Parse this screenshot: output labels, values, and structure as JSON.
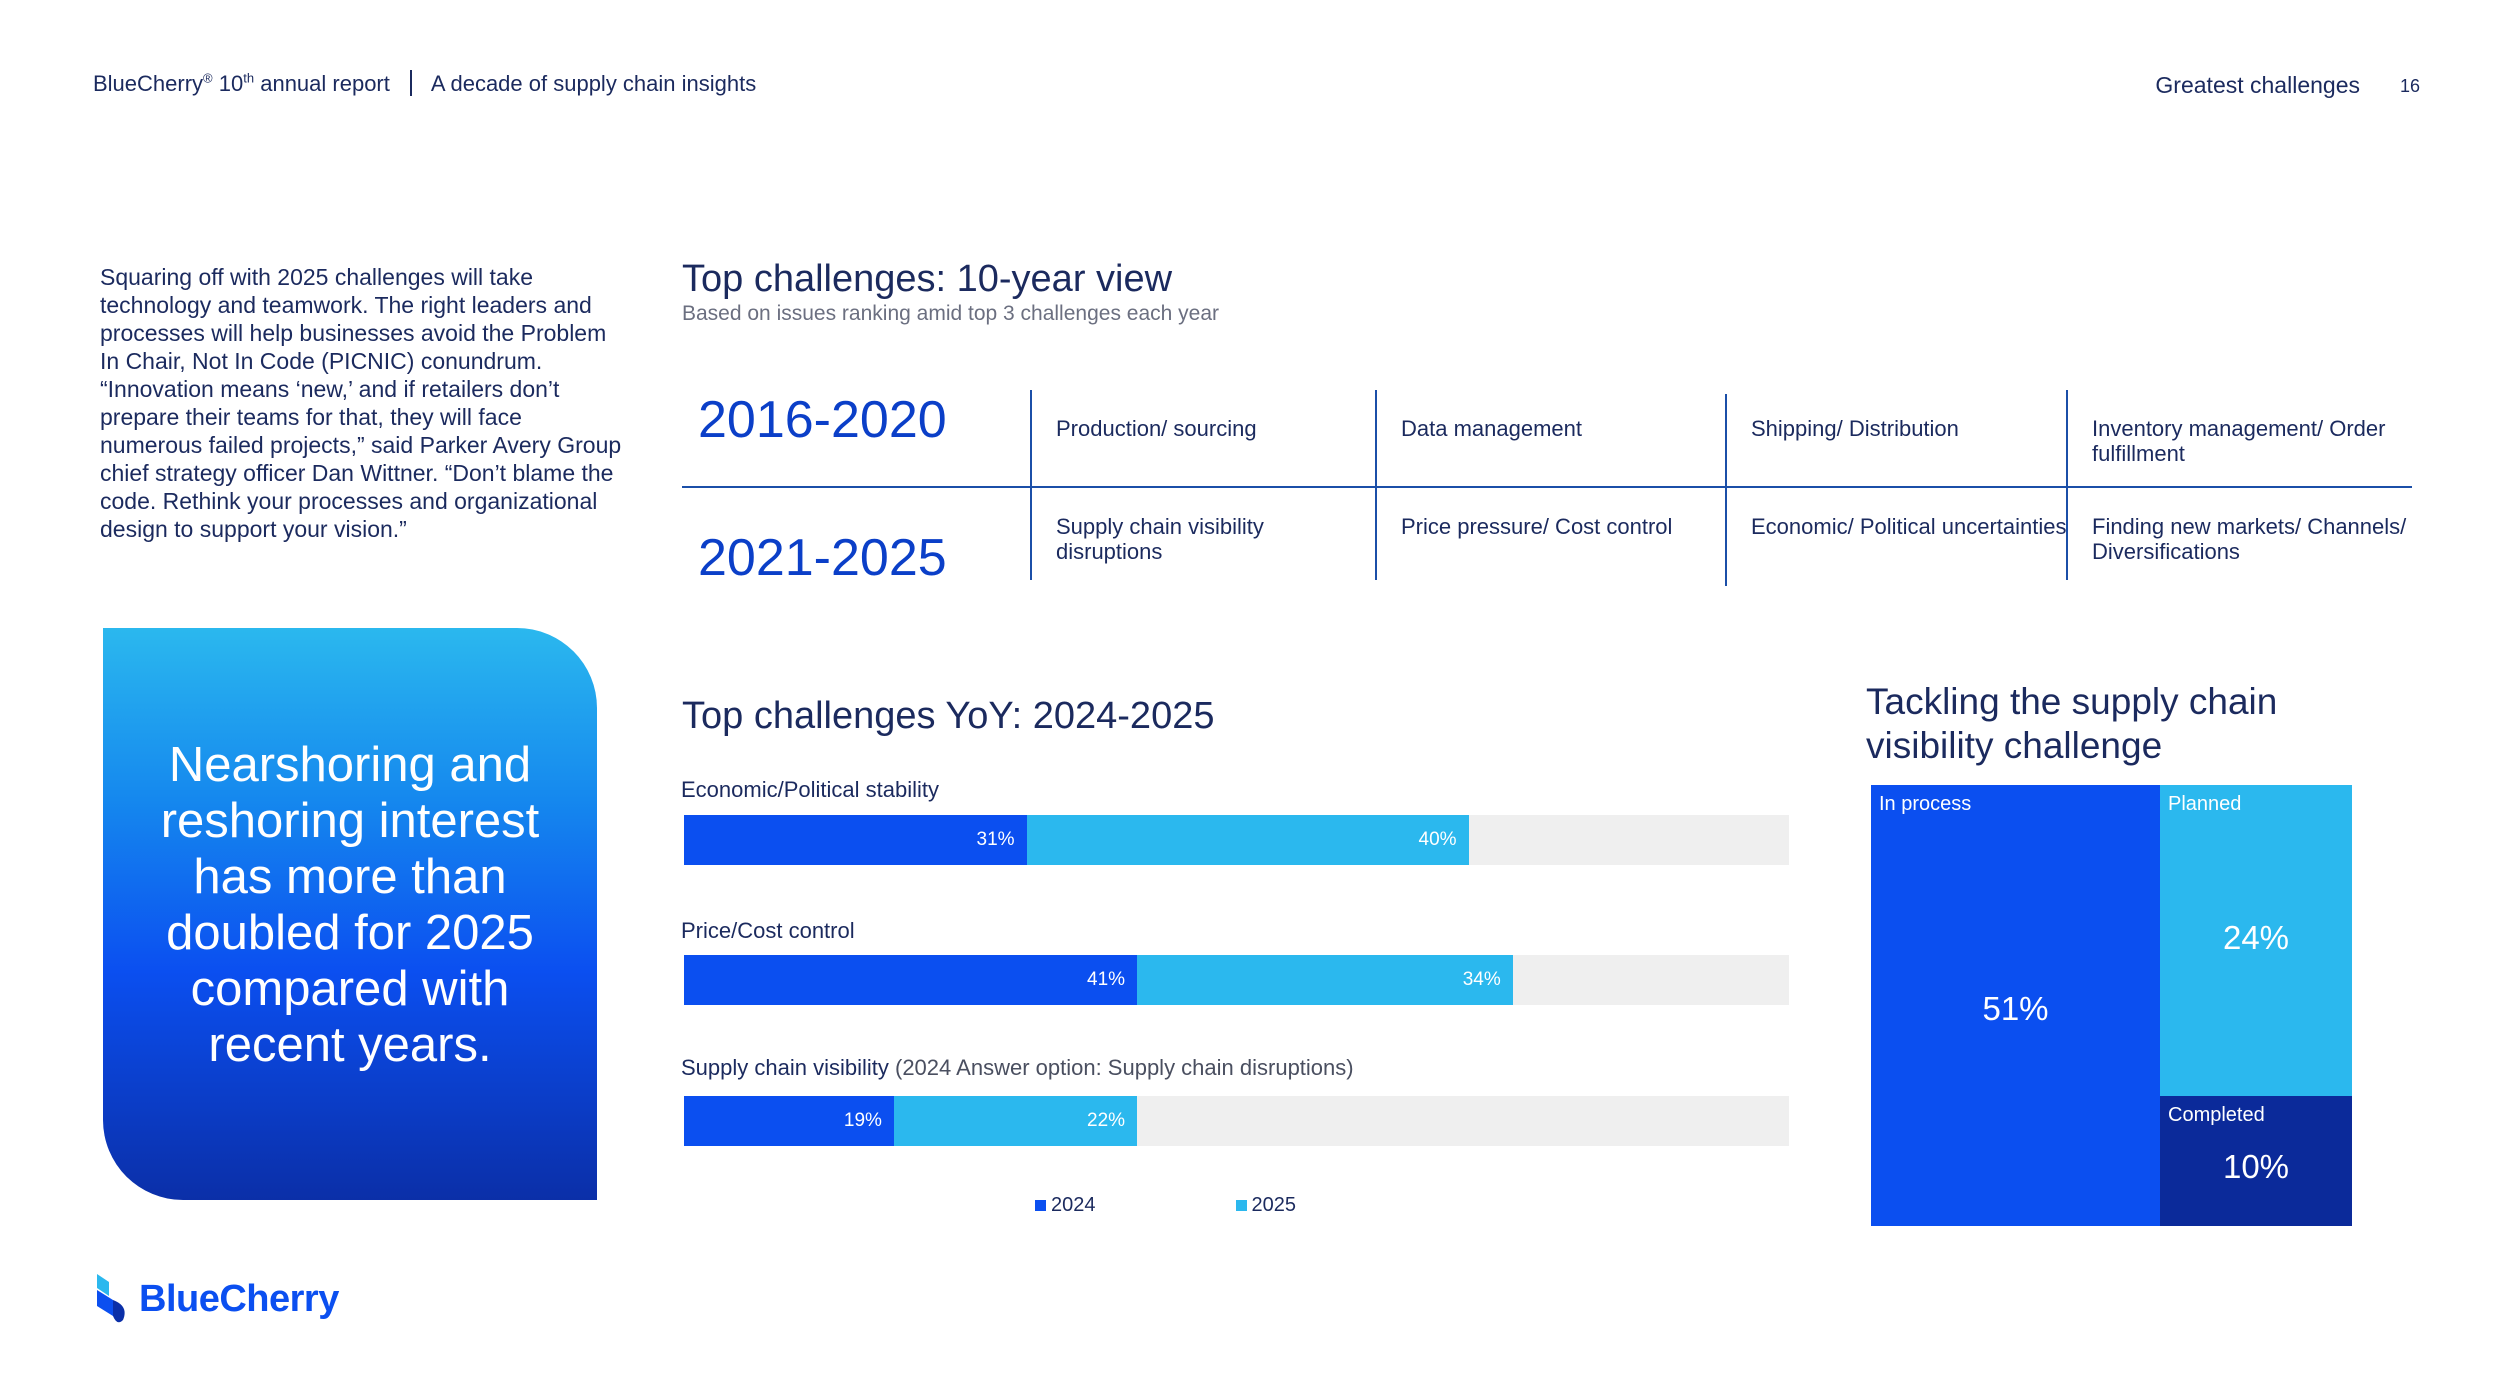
{
  "header": {
    "brand": "BlueCherry",
    "reg": "®",
    "ten": "10",
    "th": "th",
    "report": "annual report",
    "subtitle": "A decade of supply chain insights",
    "section": "Greatest challenges",
    "page": "16"
  },
  "intro": "Squaring off with 2025 challenges will take technology and teamwork. The right leaders and processes will help businesses avoid the Problem In Chair, Not In Code (PICNIC) conundrum. “Innovation means ‘new,’ and if retailers don’t prepare their teams for that, they will face numerous failed projects,” said Parker Avery Group chief strategy officer Dan Wittner. “Don’t blame the code. Rethink your processes and organizational design to support your vision.”",
  "callout": "Nearshoring and reshoring interest has more than doubled for 2025 compared with recent years.",
  "logo": {
    "text": "BlueCherry"
  },
  "ten_year": {
    "title": "Top challenges: 10-year view",
    "subtitle": "Based on issues ranking amid top 3 challenges each year",
    "rows": [
      {
        "period": "2016-2020",
        "items": [
          "Production/ sourcing",
          "Data management",
          "Shipping/ Distribution",
          "Inventory management/ Order fulfillment"
        ]
      },
      {
        "period": "2021-2025",
        "items": [
          "Supply chain visibility disruptions",
          "Price pressure/ Cost control",
          "Economic/ Political uncertainties",
          "Finding new markets/ Channels/ Diversifications"
        ]
      }
    ]
  },
  "yoy": {
    "title": "Top challenges YoY: 2024-2025",
    "bars": [
      {
        "label": "Economic/Political stability",
        "note": "",
        "v2024": 31,
        "v2025": 40,
        "t2024": "31%",
        "t2025": "40%"
      },
      {
        "label": "Price/Cost control",
        "note": "",
        "v2024": 41,
        "v2025": 34,
        "t2024": "41%",
        "t2025": "34%"
      },
      {
        "label": "Supply chain visibility",
        "note": "(2024 Answer option: Supply chain disruptions)",
        "v2024": 19,
        "v2025": 22,
        "t2024": "19%",
        "t2025": "22%"
      }
    ],
    "legend": [
      "2024",
      "2025"
    ],
    "colors": {
      "y2024": "#0b4ff0",
      "y2025": "#2bb8ee",
      "track": "#efefef"
    }
  },
  "chart_data": [
    {
      "type": "bar",
      "orientation": "horizontal-stacked",
      "title": "Top challenges YoY: 2024-2025",
      "categories": [
        "Economic/Political stability",
        "Price/Cost control",
        "Supply chain visibility"
      ],
      "series": [
        {
          "name": "2024",
          "values": [
            31,
            41,
            19
          ]
        },
        {
          "name": "2025",
          "values": [
            40,
            34,
            22
          ]
        }
      ],
      "xlim": [
        0,
        100
      ],
      "legend": "bottom"
    },
    {
      "type": "treemap",
      "title": "Tackling the supply chain visibility challenge",
      "categories": [
        "In process",
        "Planned",
        "Completed"
      ],
      "values": [
        51,
        24,
        10
      ]
    }
  ],
  "treemap": {
    "title": "Tackling the supply chain visibility challenge",
    "cells": [
      {
        "label": "In process",
        "value": "51%",
        "color": "#0b4ff0"
      },
      {
        "label": "Planned",
        "value": "24%",
        "color": "#2bb8ee"
      },
      {
        "label": "Completed",
        "value": "10%",
        "color": "#0b2a9a"
      }
    ]
  }
}
